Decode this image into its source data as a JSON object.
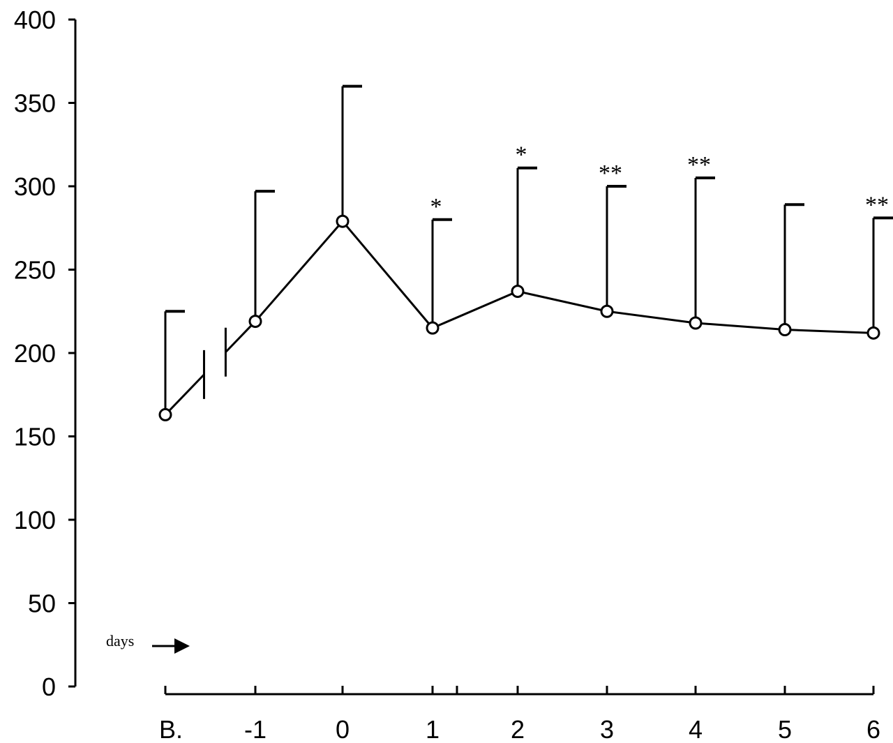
{
  "chart_data": {
    "type": "line",
    "categories": [
      "B.",
      "-1",
      "0",
      "1",
      "2",
      "3",
      "4",
      "5",
      "6"
    ],
    "series": [
      {
        "values": [
          163,
          219,
          279,
          215,
          237,
          225,
          218,
          214,
          212
        ],
        "error_upper": [
          225,
          297,
          360,
          280,
          311,
          300,
          305,
          289,
          281
        ]
      }
    ],
    "significance": [
      "",
      "",
      "",
      "*",
      "*",
      "**",
      "**",
      "",
      "**"
    ],
    "ylim": [
      0,
      400
    ],
    "yticks": [
      0,
      50,
      100,
      150,
      200,
      250,
      300,
      350,
      400
    ],
    "axis_break_between": [
      "B.",
      "-1"
    ],
    "annotation": "days",
    "xlabel": "",
    "ylabel": "",
    "title": "",
    "grid": false,
    "legend": "none",
    "colors": {
      "line": "#000000",
      "marker_fill": "#ffffff"
    }
  }
}
